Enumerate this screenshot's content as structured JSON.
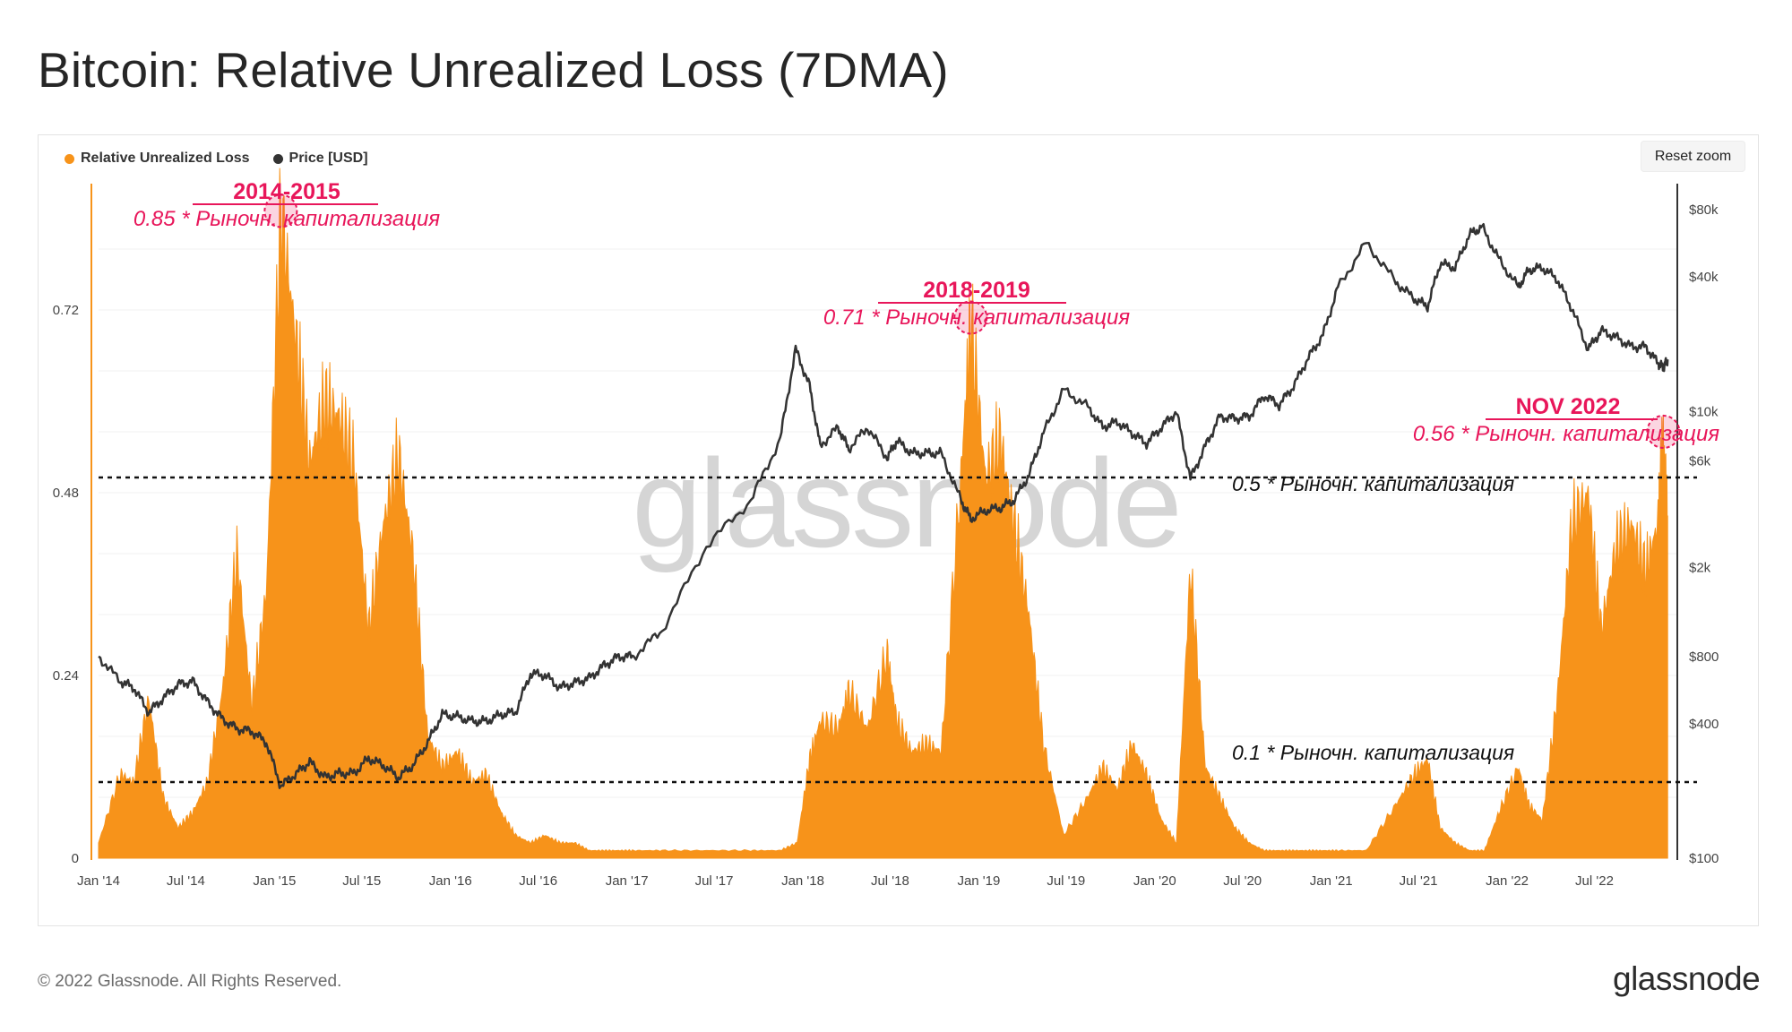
{
  "title": "Bitcoin: Relative Unrealized Loss (7DMA)",
  "reset_zoom_label": "Reset zoom",
  "footer": {
    "copyright": "© 2022 Glassnode. All Rights Reserved.",
    "logo_text": "glassnode"
  },
  "watermark": "glassnode",
  "colors": {
    "loss_fill": "#f7931a",
    "price_line": "#333333",
    "annotation": "#e8165a",
    "reference_line": "#111111"
  },
  "chart_data": {
    "type": "area",
    "legend_placement": "top-left",
    "grid": true,
    "series": [
      {
        "name": "Relative Unrealized Loss",
        "type": "area",
        "axis": "left",
        "color": "#f7931a",
        "x": [
          "2014-01-01",
          "2014-02-15",
          "2014-03-15",
          "2014-04-15",
          "2014-05-15",
          "2014-06-15",
          "2014-07-15",
          "2014-08-15",
          "2014-09-15",
          "2014-10-15",
          "2014-11-15",
          "2014-12-15",
          "2015-01-14",
          "2015-02-15",
          "2015-03-15",
          "2015-04-15",
          "2015-05-15",
          "2015-06-15",
          "2015-07-15",
          "2015-08-15",
          "2015-09-15",
          "2015-10-15",
          "2015-11-15",
          "2015-12-15",
          "2016-01-15",
          "2016-02-15",
          "2016-03-15",
          "2016-04-15",
          "2016-05-15",
          "2016-06-15",
          "2016-07-15",
          "2016-08-15",
          "2016-09-15",
          "2016-10-15",
          "2016-11-15",
          "2016-12-15",
          "2017-01-15",
          "2017-03-15",
          "2017-06-15",
          "2017-09-15",
          "2017-11-15",
          "2017-12-20",
          "2018-01-15",
          "2018-02-06",
          "2018-03-15",
          "2018-04-06",
          "2018-05-15",
          "2018-06-25",
          "2018-07-15",
          "2018-08-15",
          "2018-09-15",
          "2018-10-15",
          "2018-11-25",
          "2018-12-15",
          "2019-01-15",
          "2019-02-15",
          "2019-03-15",
          "2019-04-15",
          "2019-05-15",
          "2019-06-26",
          "2019-08-15",
          "2019-09-15",
          "2019-10-15",
          "2019-11-15",
          "2019-12-15",
          "2020-01-15",
          "2020-02-15",
          "2020-03-15",
          "2020-04-15",
          "2020-05-15",
          "2020-06-15",
          "2020-07-15",
          "2020-08-15",
          "2020-09-15",
          "2020-10-15",
          "2020-11-15",
          "2020-12-15",
          "2021-01-15",
          "2021-03-15",
          "2021-05-15",
          "2021-06-22",
          "2021-07-20",
          "2021-08-15",
          "2021-09-15",
          "2021-10-15",
          "2021-11-15",
          "2021-12-15",
          "2022-01-24",
          "2022-02-15",
          "2022-03-15",
          "2022-04-15",
          "2022-05-15",
          "2022-06-18",
          "2022-07-15",
          "2022-08-15",
          "2022-09-15",
          "2022-10-15",
          "2022-11-10",
          "2022-11-21",
          "2022-11-30"
        ],
        "values": [
          0.02,
          0.11,
          0.1,
          0.21,
          0.08,
          0.04,
          0.06,
          0.1,
          0.22,
          0.4,
          0.2,
          0.35,
          0.85,
          0.68,
          0.52,
          0.6,
          0.58,
          0.52,
          0.3,
          0.44,
          0.53,
          0.4,
          0.16,
          0.12,
          0.14,
          0.1,
          0.11,
          0.06,
          0.03,
          0.02,
          0.03,
          0.02,
          0.02,
          0.01,
          0.01,
          0.01,
          0.01,
          0.01,
          0.01,
          0.01,
          0.01,
          0.02,
          0.13,
          0.18,
          0.17,
          0.22,
          0.17,
          0.27,
          0.18,
          0.14,
          0.15,
          0.14,
          0.5,
          0.71,
          0.5,
          0.55,
          0.44,
          0.32,
          0.15,
          0.03,
          0.08,
          0.12,
          0.09,
          0.15,
          0.11,
          0.05,
          0.02,
          0.38,
          0.12,
          0.08,
          0.04,
          0.02,
          0.01,
          0.01,
          0.01,
          0.01,
          0.01,
          0.01,
          0.01,
          0.07,
          0.11,
          0.13,
          0.04,
          0.02,
          0.01,
          0.01,
          0.06,
          0.12,
          0.07,
          0.05,
          0.21,
          0.44,
          0.48,
          0.3,
          0.41,
          0.44,
          0.38,
          0.44,
          0.56,
          0.45
        ]
      },
      {
        "name": "Price [USD]",
        "type": "line",
        "axis": "right",
        "scale": "log",
        "color": "#333333",
        "x": [
          "2014-01-01",
          "2014-02-15",
          "2014-03-15",
          "2014-04-15",
          "2014-05-15",
          "2014-06-15",
          "2014-07-15",
          "2014-08-15",
          "2014-09-15",
          "2014-10-15",
          "2014-11-15",
          "2014-12-15",
          "2015-01-14",
          "2015-02-15",
          "2015-03-15",
          "2015-04-15",
          "2015-05-15",
          "2015-06-15",
          "2015-07-15",
          "2015-08-15",
          "2015-09-15",
          "2015-10-15",
          "2015-11-15",
          "2015-12-15",
          "2016-01-15",
          "2016-02-15",
          "2016-03-15",
          "2016-04-15",
          "2016-05-15",
          "2016-06-15",
          "2016-07-15",
          "2016-08-15",
          "2016-09-15",
          "2016-10-15",
          "2016-11-15",
          "2016-12-15",
          "2017-01-15",
          "2017-03-15",
          "2017-06-15",
          "2017-09-15",
          "2017-11-15",
          "2017-12-17",
          "2018-01-15",
          "2018-02-06",
          "2018-03-15",
          "2018-04-06",
          "2018-05-15",
          "2018-06-25",
          "2018-07-15",
          "2018-08-15",
          "2018-09-15",
          "2018-10-15",
          "2018-11-25",
          "2018-12-15",
          "2019-01-15",
          "2019-02-15",
          "2019-03-15",
          "2019-04-15",
          "2019-05-15",
          "2019-06-26",
          "2019-08-15",
          "2019-09-15",
          "2019-10-15",
          "2019-11-15",
          "2019-12-15",
          "2020-01-15",
          "2020-02-15",
          "2020-03-15",
          "2020-04-15",
          "2020-05-15",
          "2020-06-15",
          "2020-07-15",
          "2020-08-15",
          "2020-09-15",
          "2020-10-15",
          "2020-11-15",
          "2020-12-15",
          "2021-01-15",
          "2021-03-15",
          "2021-05-15",
          "2021-06-22",
          "2021-07-20",
          "2021-08-15",
          "2021-09-15",
          "2021-10-15",
          "2021-11-10",
          "2021-12-15",
          "2022-01-24",
          "2022-02-15",
          "2022-03-15",
          "2022-04-15",
          "2022-05-15",
          "2022-06-18",
          "2022-07-15",
          "2022-08-15",
          "2022-09-15",
          "2022-10-15",
          "2022-11-10",
          "2022-11-21",
          "2022-11-30"
        ],
        "values": [
          800,
          620,
          580,
          450,
          520,
          600,
          620,
          500,
          420,
          380,
          370,
          330,
          210,
          240,
          270,
          230,
          240,
          240,
          280,
          260,
          230,
          260,
          330,
          440,
          430,
          410,
          410,
          440,
          450,
          670,
          660,
          580,
          610,
          640,
          730,
          800,
          800,
          1050,
          2500,
          4000,
          7500,
          19000,
          13000,
          7000,
          8500,
          6800,
          8500,
          6200,
          7400,
          6500,
          6500,
          6500,
          4000,
          3300,
          3600,
          3700,
          4000,
          5200,
          8000,
          12500,
          10500,
          8500,
          9000,
          8000,
          7200,
          8500,
          10000,
          5000,
          7000,
          9500,
          9300,
          9500,
          11800,
          10700,
          13000,
          17500,
          22000,
          36000,
          57000,
          38000,
          32000,
          29500,
          46000,
          44000,
          62000,
          67000,
          48000,
          36000,
          43000,
          44000,
          39000,
          29000,
          19000,
          23000,
          21500,
          19500,
          19500,
          16500,
          15800,
          17100
        ]
      }
    ],
    "y_left": {
      "range": [
        0,
        0.88
      ],
      "ticks": [
        "0",
        "0.24",
        "0.48",
        "0.72"
      ],
      "tick_values": [
        0,
        0.24,
        0.48,
        0.72
      ]
    },
    "y_right": {
      "scale": "log",
      "range": [
        100,
        100000
      ],
      "ticks": [
        "$100",
        "$400",
        "$800",
        "$2k",
        "$6k",
        "$10k",
        "$40k",
        "$80k"
      ],
      "tick_values": [
        100,
        400,
        800,
        2000,
        6000,
        10000,
        40000,
        80000
      ]
    },
    "x_axis": {
      "range": [
        "2014-01-01",
        "2022-12-20"
      ],
      "ticks": [
        "Jan '14",
        "Jul '14",
        "Jan '15",
        "Jul '15",
        "Jan '16",
        "Jul '16",
        "Jan '17",
        "Jul '17",
        "Jan '18",
        "Jul '18",
        "Jan '19",
        "Jul '19",
        "Jan '20",
        "Jul '20",
        "Jan '21",
        "Jul '21",
        "Jan '22",
        "Jul '22"
      ],
      "tick_dates": [
        "2014-01-01",
        "2014-07-01",
        "2015-01-01",
        "2015-07-01",
        "2016-01-01",
        "2016-07-01",
        "2017-01-01",
        "2017-07-01",
        "2018-01-01",
        "2018-07-01",
        "2019-01-01",
        "2019-07-01",
        "2020-01-01",
        "2020-07-01",
        "2021-01-01",
        "2021-07-01",
        "2022-01-01",
        "2022-07-01"
      ]
    },
    "reference_lines": [
      {
        "value": 0.5,
        "label": "0.5 *  Рыночн. капитализация"
      },
      {
        "value": 0.1,
        "label": "0.1 *  Рыночн. капитализация"
      }
    ],
    "annotations": [
      {
        "date": "2015-01-14",
        "value": 0.85,
        "heading": "2014-2015",
        "text": "0.85 *  Рыночн. капитализация"
      },
      {
        "date": "2018-12-15",
        "value": 0.71,
        "heading": "2018-2019",
        "text": "0.71 * Рыночн. капитализация"
      },
      {
        "date": "2022-11-21",
        "value": 0.56,
        "heading": "NOV 2022",
        "text": "0.56 *  Рыночн. капитализация"
      }
    ]
  }
}
